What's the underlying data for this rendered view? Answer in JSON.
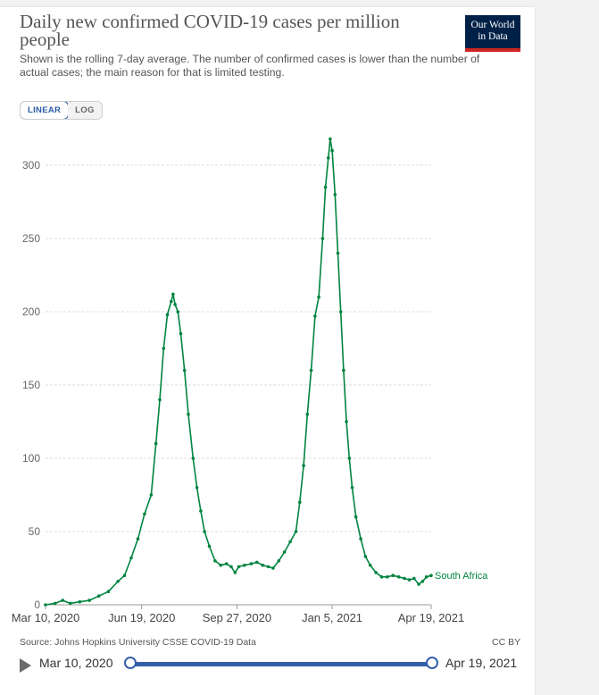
{
  "header": {
    "title": "Daily new confirmed COVID-19 cases per million people",
    "subtitle": "Shown is the rolling 7-day average. The number of confirmed cases is lower than the number of actual cases; the main reason for that is limited testing.",
    "logo_line1": "Our World",
    "logo_line2": "in Data"
  },
  "scale_toggle": {
    "linear_label": "LINEAR",
    "log_label": "LOG",
    "selected": "LINEAR"
  },
  "footer": {
    "source": "Source: Johns Hopkins University CSSE COVID-19 Data",
    "license": "CC BY"
  },
  "timeline": {
    "start_label": "Mar 10, 2020",
    "end_label": "Apr 19, 2021"
  },
  "colors": {
    "series": "#00843f",
    "grid": "#dddddd",
    "axis": "#666666",
    "brand": "#002147",
    "brand_accent": "#ce261e",
    "slider": "#3360a9"
  },
  "chart_data": {
    "type": "line",
    "title": "Daily new confirmed COVID-19 cases per million people",
    "xlabel": "",
    "ylabel": "",
    "x_range": [
      "2020-03-10",
      "2021-04-19"
    ],
    "ylim": [
      0,
      320
    ],
    "y_ticks": [
      0,
      50,
      100,
      150,
      200,
      250,
      300
    ],
    "x_ticks": [
      "Mar 10, 2020",
      "Jun 19, 2020",
      "Sep 27, 2020",
      "Jan 5, 2021",
      "Apr 19, 2021"
    ],
    "grid": true,
    "series": [
      {
        "name": "South Africa",
        "color": "#00843f",
        "points": [
          [
            "2020-03-10",
            0
          ],
          [
            "2020-03-20",
            1
          ],
          [
            "2020-03-28",
            3
          ],
          [
            "2020-04-05",
            1
          ],
          [
            "2020-04-15",
            2
          ],
          [
            "2020-04-25",
            3
          ],
          [
            "2020-05-05",
            6
          ],
          [
            "2020-05-15",
            9
          ],
          [
            "2020-05-25",
            16
          ],
          [
            "2020-06-01",
            20
          ],
          [
            "2020-06-08",
            32
          ],
          [
            "2020-06-15",
            45
          ],
          [
            "2020-06-22",
            62
          ],
          [
            "2020-06-29",
            75
          ],
          [
            "2020-07-04",
            110
          ],
          [
            "2020-07-08",
            140
          ],
          [
            "2020-07-12",
            175
          ],
          [
            "2020-07-16",
            198
          ],
          [
            "2020-07-20",
            207
          ],
          [
            "2020-07-22",
            212
          ],
          [
            "2020-07-24",
            205
          ],
          [
            "2020-07-27",
            200
          ],
          [
            "2020-07-30",
            185
          ],
          [
            "2020-08-03",
            160
          ],
          [
            "2020-08-07",
            130
          ],
          [
            "2020-08-12",
            100
          ],
          [
            "2020-08-16",
            80
          ],
          [
            "2020-08-20",
            64
          ],
          [
            "2020-08-24",
            50
          ],
          [
            "2020-08-29",
            40
          ],
          [
            "2020-09-04",
            30
          ],
          [
            "2020-09-10",
            27
          ],
          [
            "2020-09-16",
            28
          ],
          [
            "2020-09-21",
            26
          ],
          [
            "2020-09-25",
            22
          ],
          [
            "2020-09-29",
            26
          ],
          [
            "2020-10-05",
            27
          ],
          [
            "2020-10-12",
            28
          ],
          [
            "2020-10-18",
            29
          ],
          [
            "2020-10-24",
            27
          ],
          [
            "2020-10-30",
            26
          ],
          [
            "2020-11-04",
            25
          ],
          [
            "2020-11-10",
            30
          ],
          [
            "2020-11-16",
            36
          ],
          [
            "2020-11-22",
            43
          ],
          [
            "2020-11-28",
            50
          ],
          [
            "2020-12-02",
            70
          ],
          [
            "2020-12-06",
            95
          ],
          [
            "2020-12-10",
            130
          ],
          [
            "2020-12-14",
            160
          ],
          [
            "2020-12-18",
            197
          ],
          [
            "2020-12-22",
            210
          ],
          [
            "2020-12-26",
            250
          ],
          [
            "2020-12-29",
            285
          ],
          [
            "2021-01-01",
            305
          ],
          [
            "2021-01-03",
            318
          ],
          [
            "2021-01-05",
            310
          ],
          [
            "2021-01-08",
            280
          ],
          [
            "2021-01-11",
            240
          ],
          [
            "2021-01-14",
            200
          ],
          [
            "2021-01-17",
            160
          ],
          [
            "2021-01-20",
            125
          ],
          [
            "2021-01-23",
            100
          ],
          [
            "2021-01-26",
            80
          ],
          [
            "2021-01-30",
            60
          ],
          [
            "2021-02-04",
            45
          ],
          [
            "2021-02-09",
            33
          ],
          [
            "2021-02-14",
            27
          ],
          [
            "2021-02-20",
            22
          ],
          [
            "2021-02-26",
            19
          ],
          [
            "2021-03-04",
            19
          ],
          [
            "2021-03-10",
            20
          ],
          [
            "2021-03-16",
            19
          ],
          [
            "2021-03-22",
            18
          ],
          [
            "2021-03-27",
            17
          ],
          [
            "2021-04-01",
            18
          ],
          [
            "2021-04-06",
            14
          ],
          [
            "2021-04-10",
            16
          ],
          [
            "2021-04-14",
            19
          ],
          [
            "2021-04-19",
            20
          ]
        ]
      }
    ]
  }
}
